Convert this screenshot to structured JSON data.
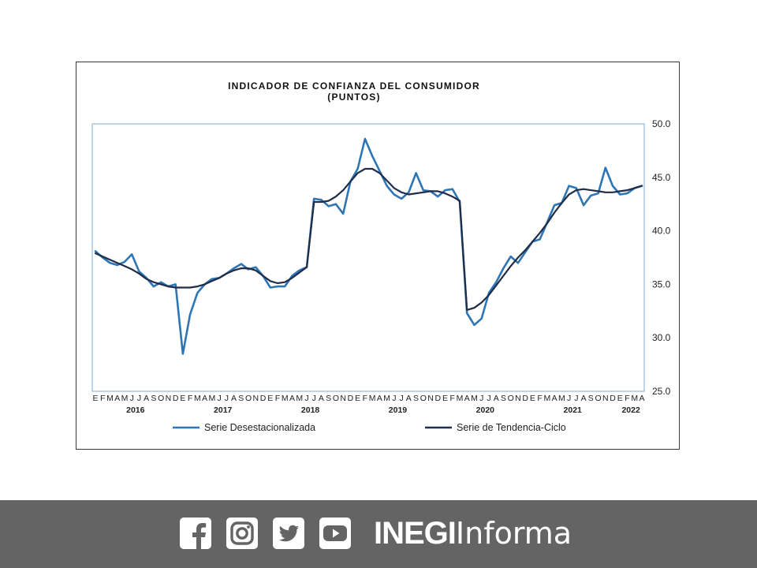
{
  "chart_data": {
    "type": "line",
    "title": "INDICADOR DE CONFIANZA  DEL CONSUMIDOR",
    "subtitle": "(PUNTOS)",
    "ylim": [
      25,
      50
    ],
    "y_ticks": [
      "50.0",
      "45.0",
      "40.0",
      "35.0",
      "30.0",
      "25.0"
    ],
    "y_axis_side": "right",
    "month_labels": [
      "E",
      "F",
      "M",
      "A",
      "M",
      "J",
      "J",
      "A",
      "S",
      "O",
      "N",
      "D",
      "E",
      "F",
      "M",
      "A",
      "M",
      "J",
      "J",
      "A",
      "S",
      "O",
      "N",
      "D",
      "E",
      "F",
      "M",
      "A",
      "M",
      "J",
      "J",
      "A",
      "S",
      "O",
      "N",
      "D",
      "E",
      "F",
      "M",
      "A",
      "M",
      "J",
      "J",
      "A",
      "S",
      "O",
      "N",
      "D",
      "E",
      "F",
      "M",
      "A",
      "M",
      "J",
      "J",
      "A",
      "S",
      "O",
      "N",
      "D",
      "E",
      "F",
      "M",
      "A",
      "M",
      "J",
      "J",
      "A",
      "S",
      "O",
      "N",
      "D",
      "E",
      "F",
      "M",
      "A"
    ],
    "year_labels": [
      {
        "label": "2016",
        "month_index": 5.5
      },
      {
        "label": "2017",
        "month_index": 17.5
      },
      {
        "label": "2018",
        "month_index": 29.5
      },
      {
        "label": "2019",
        "month_index": 41.5
      },
      {
        "label": "2020",
        "month_index": 53.5
      },
      {
        "label": "2021",
        "month_index": 65.5
      },
      {
        "label": "2022",
        "month_index": 73.5
      }
    ],
    "grid": false,
    "legend_position": "bottom",
    "series": [
      {
        "name": "Serie Desestacionalizada",
        "color": "#2e75b6",
        "values": [
          38.1,
          37.5,
          37.0,
          36.8,
          37.1,
          37.8,
          36.2,
          35.6,
          34.8,
          35.2,
          34.8,
          35.0,
          28.5,
          32.2,
          34.2,
          35.0,
          35.5,
          35.6,
          36.0,
          36.5,
          36.9,
          36.4,
          36.6,
          35.8,
          34.7,
          34.8,
          34.8,
          35.8,
          36.3,
          36.6,
          43.0,
          42.9,
          42.3,
          42.5,
          41.6,
          44.6,
          45.8,
          48.6,
          47.0,
          45.6,
          44.2,
          43.4,
          43.0,
          43.6,
          45.4,
          43.8,
          43.7,
          43.2,
          43.8,
          43.9,
          42.7,
          32.3,
          31.2,
          31.8,
          34.2,
          35.2,
          36.5,
          37.6,
          37.0,
          38.0,
          39.0,
          39.2,
          40.8,
          42.4,
          42.6,
          44.2,
          44.0,
          42.4,
          43.3,
          43.5,
          45.9,
          44.2,
          43.4,
          43.5,
          44.0,
          44.2
        ]
      },
      {
        "name": "Serie de Tendencia-Ciclo",
        "color": "#1f2d48",
        "values": [
          37.9,
          37.6,
          37.3,
          37.0,
          36.7,
          36.4,
          36.0,
          35.5,
          35.2,
          35.0,
          34.8,
          34.7,
          34.7,
          34.7,
          34.8,
          35.0,
          35.3,
          35.6,
          36.0,
          36.3,
          36.5,
          36.5,
          36.3,
          35.8,
          35.3,
          35.1,
          35.2,
          35.6,
          36.1,
          36.6,
          42.7,
          42.7,
          42.8,
          43.2,
          43.8,
          44.6,
          45.4,
          45.8,
          45.8,
          45.4,
          44.7,
          44.0,
          43.6,
          43.4,
          43.5,
          43.6,
          43.7,
          43.7,
          43.5,
          43.2,
          42.8,
          32.6,
          32.8,
          33.3,
          34.0,
          34.9,
          35.8,
          36.7,
          37.5,
          38.2,
          39.0,
          39.8,
          40.7,
          41.7,
          42.6,
          43.4,
          43.8,
          43.9,
          43.8,
          43.7,
          43.6,
          43.6,
          43.7,
          43.8,
          44.0,
          44.2
        ]
      }
    ]
  },
  "footer": {
    "brand_bold": "INEGI",
    "brand_light": "Informa",
    "social_icons": [
      "facebook-icon",
      "instagram-icon",
      "twitter-icon",
      "youtube-icon"
    ],
    "background": "#646464"
  }
}
